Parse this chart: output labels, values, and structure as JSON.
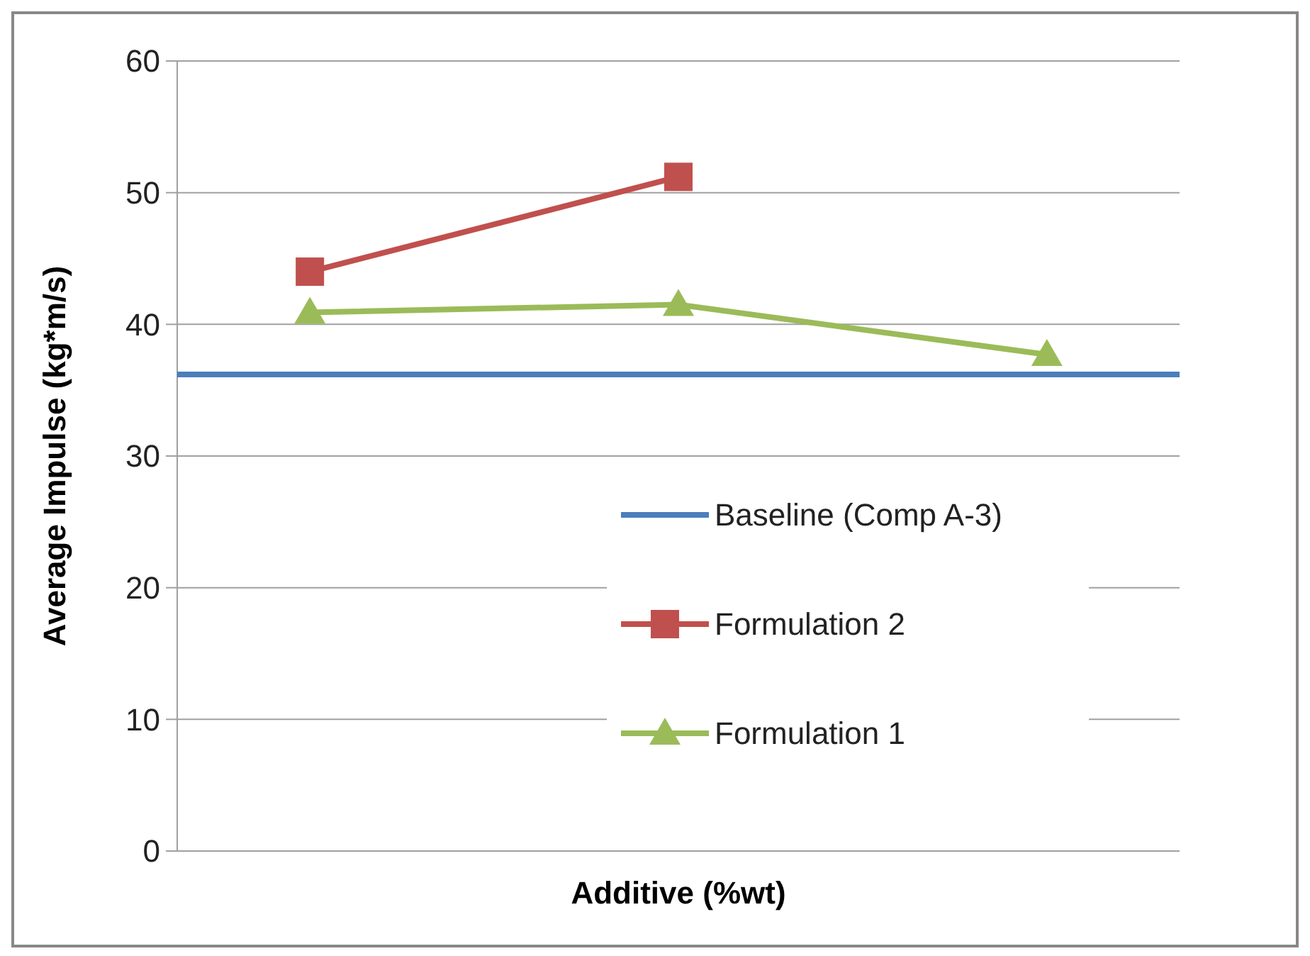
{
  "chart_data": {
    "type": "line",
    "xlabel": "Additive (%wt)",
    "ylabel": "Average Impulse (kg*m/s)",
    "categories": [
      null,
      null,
      null
    ],
    "series": [
      {
        "name": "Formulation 2",
        "color": "#c0504d",
        "marker": "square",
        "values": [
          44.0,
          51.2,
          null
        ]
      },
      {
        "name": "Formulation 1",
        "color": "#9bbb59",
        "marker": "triangle",
        "values": [
          40.9,
          41.5,
          37.7
        ]
      }
    ],
    "ref_lines": [
      {
        "axis": "y",
        "value": 36.2,
        "label": "Baseline (Comp A-3)",
        "color": "#4a7ebb"
      }
    ],
    "ylim": [
      0,
      60
    ],
    "yticks": [
      0,
      10,
      20,
      30,
      40,
      50,
      60
    ],
    "grid": "y",
    "legend": "right",
    "tick_labels": "y"
  }
}
